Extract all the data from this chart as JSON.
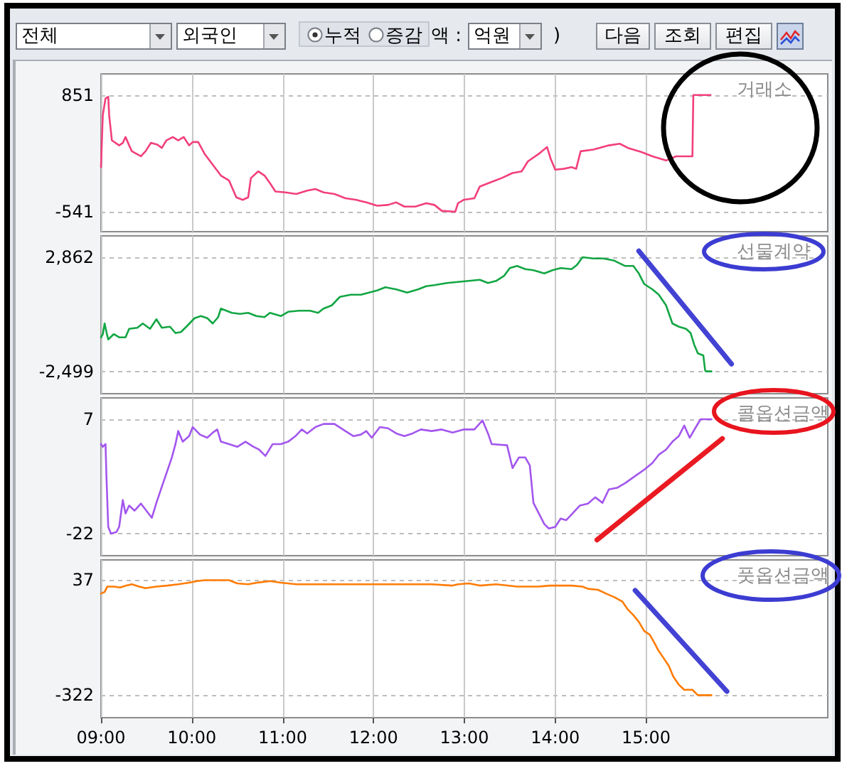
{
  "chart_data": [
    {
      "type": "other",
      "annotations": [
        "전체",
        "외국인",
        "누적",
        "증감",
        "액 :",
        "억원",
        ")",
        "다음",
        "조회",
        "편집"
      ]
    },
    {
      "type": "line",
      "title": "거래소",
      "series": [
        {
          "color": "#f23f7c",
          "x": [
            9.0,
            9.02,
            9.05,
            9.08,
            9.09,
            9.12,
            9.2,
            9.24,
            9.27,
            9.31,
            9.34,
            9.39,
            9.44,
            9.49,
            9.55,
            9.62,
            9.67,
            9.72,
            9.79,
            9.85,
            9.91,
            9.97,
            10.01,
            10.07,
            10.14,
            10.23,
            10.32,
            10.41,
            10.49,
            10.56,
            10.62,
            10.65,
            10.73,
            10.8,
            10.86,
            10.92,
            11.03,
            11.15,
            11.27,
            11.36,
            11.45,
            11.57,
            11.69,
            11.81,
            11.92,
            12.04,
            12.16,
            12.25,
            12.34,
            12.46,
            12.58,
            12.67,
            12.75,
            12.9,
            12.93,
            12.99,
            13.11,
            13.17,
            13.29,
            13.41,
            13.53,
            13.63,
            13.7,
            13.82,
            13.91,
            13.95,
            14.0,
            14.09,
            14.18,
            14.23,
            14.28,
            14.42,
            14.59,
            14.71,
            14.8,
            14.95,
            15.07,
            15.22,
            15.33,
            15.51,
            15.52,
            15.71
          ],
          "values": [
            -10,
            610,
            810,
            830,
            610,
            310,
            250,
            280,
            350,
            250,
            180,
            150,
            120,
            180,
            280,
            260,
            220,
            310,
            350,
            310,
            350,
            250,
            290,
            290,
            150,
            20,
            -110,
            -170,
            -370,
            -400,
            -370,
            -140,
            -60,
            -110,
            -200,
            -300,
            -310,
            -330,
            -290,
            -270,
            -310,
            -330,
            -380,
            -400,
            -430,
            -470,
            -460,
            -430,
            -480,
            -480,
            -440,
            -460,
            -530,
            -541,
            -440,
            -400,
            -380,
            -240,
            -190,
            -140,
            -80,
            -60,
            60,
            150,
            230,
            90,
            -40,
            -30,
            -10,
            -30,
            180,
            200,
            250,
            270,
            220,
            170,
            120,
            70,
            120,
            120,
            851,
            851
          ]
        }
      ],
      "xlim": [
        9,
        17
      ],
      "xticks": [
        9,
        10,
        11,
        12,
        13,
        14,
        15
      ],
      "ylim": [
        -779,
        1103
      ],
      "yticks": [
        -541,
        851
      ],
      "grid": true,
      "tick_labels": "y"
    },
    {
      "type": "line",
      "title": "선물계약",
      "series": [
        {
          "color": "#12a643",
          "x": [
            9.0,
            9.02,
            9.04,
            9.06,
            9.08,
            9.14,
            9.2,
            9.27,
            9.31,
            9.4,
            9.46,
            9.54,
            9.61,
            9.67,
            9.76,
            9.82,
            9.88,
            9.94,
            10.03,
            10.1,
            10.17,
            10.23,
            10.29,
            10.32,
            10.38,
            10.44,
            10.53,
            10.62,
            10.71,
            10.8,
            10.86,
            10.98,
            11.06,
            11.18,
            11.3,
            11.39,
            11.45,
            11.54,
            11.63,
            11.75,
            11.86,
            11.95,
            12.04,
            12.13,
            12.25,
            12.37,
            12.49,
            12.58,
            12.67,
            12.81,
            12.93,
            13.05,
            13.17,
            13.26,
            13.35,
            13.44,
            13.5,
            13.58,
            13.67,
            13.76,
            13.88,
            13.97,
            14.06,
            14.18,
            14.24,
            14.3,
            14.42,
            14.53,
            14.65,
            14.77,
            14.86,
            14.92,
            14.98,
            15.07,
            15.14,
            15.22,
            15.29,
            15.36,
            15.44,
            15.49,
            15.53,
            15.57,
            15.6,
            15.63,
            15.65,
            15.66,
            15.72
          ],
          "values": [
            -900,
            -750,
            -250,
            -650,
            -1000,
            -750,
            -900,
            -900,
            -500,
            -450,
            -250,
            -500,
            -50,
            -450,
            -400,
            -700,
            -650,
            -400,
            0,
            100,
            0,
            -250,
            50,
            450,
            350,
            250,
            200,
            250,
            100,
            50,
            250,
            100,
            300,
            350,
            350,
            250,
            450,
            600,
            1000,
            1100,
            1100,
            1200,
            1300,
            1450,
            1350,
            1200,
            1350,
            1500,
            1550,
            1650,
            1700,
            1750,
            1800,
            1650,
            1750,
            2000,
            2350,
            2450,
            2300,
            2250,
            2100,
            2250,
            2350,
            2300,
            2500,
            2862,
            2800,
            2800,
            2700,
            2450,
            2450,
            2100,
            1600,
            1350,
            1100,
            600,
            -250,
            -400,
            -500,
            -700,
            -1250,
            -1650,
            -1700,
            -1750,
            -2450,
            -2499,
            -2499
          ]
        },
        {
          "color": "#4242d4",
          "x": [
            14.92,
            15.94
          ],
          "values": [
            3150,
            -2150
          ]
        }
      ],
      "xlim": [
        9,
        17
      ],
      "xticks": [
        9,
        10,
        11,
        12,
        13,
        14,
        15
      ],
      "ylim": [
        -3544,
        3861
      ],
      "yticks": [
        {
          "value": -2499,
          "label": "-2,499"
        },
        {
          "value": 2862,
          "label": "2,862"
        }
      ],
      "grid": true,
      "tick_labels": "y"
    },
    {
      "type": "line",
      "title": "콜옵션금액",
      "series": [
        {
          "color": "#a356ee",
          "x": [
            9.0,
            9.02,
            9.05,
            9.06,
            9.08,
            9.11,
            9.17,
            9.2,
            9.24,
            9.27,
            9.31,
            9.37,
            9.44,
            9.5,
            9.56,
            9.61,
            9.67,
            9.73,
            9.78,
            9.82,
            9.85,
            9.9,
            9.97,
            10.01,
            10.09,
            10.17,
            10.23,
            10.28,
            10.32,
            10.41,
            10.5,
            10.59,
            10.68,
            10.74,
            10.81,
            10.89,
            10.98,
            11.06,
            11.14,
            11.21,
            11.27,
            11.36,
            11.45,
            11.57,
            11.69,
            11.78,
            11.86,
            11.92,
            11.98,
            12.07,
            12.16,
            12.25,
            12.34,
            12.43,
            12.52,
            12.64,
            12.75,
            12.87,
            12.99,
            13.11,
            13.2,
            13.26,
            13.3,
            13.47,
            13.53,
            13.6,
            13.67,
            13.72,
            13.76,
            13.82,
            13.88,
            13.93,
            14.0,
            14.06,
            14.12,
            14.19,
            14.27,
            14.36,
            14.44,
            14.52,
            14.59,
            14.68,
            14.77,
            14.88,
            14.98,
            15.07,
            15.14,
            15.22,
            15.29,
            15.36,
            15.42,
            15.48,
            15.54,
            15.6,
            15.72
          ],
          "values": [
            0.7,
            0,
            0.7,
            -7.4,
            -20.3,
            -22,
            -21.6,
            -20.3,
            -13.5,
            -16.9,
            -14.9,
            -16.2,
            -14.4,
            -16.2,
            -18,
            -14.2,
            -10.1,
            -6.1,
            -2.7,
            0.7,
            4,
            1.3,
            2.7,
            5,
            3.1,
            2.3,
            3.6,
            4.4,
            1.3,
            0.7,
            0,
            1.3,
            0,
            -0.7,
            -2.3,
            0.7,
            0.7,
            1.3,
            2.7,
            4.4,
            3.4,
            5,
            5.8,
            5.8,
            4,
            2.7,
            3.1,
            4,
            2.3,
            5,
            4.7,
            3.4,
            2.7,
            3.4,
            4.4,
            4,
            4.4,
            3.6,
            4.4,
            4.4,
            6.7,
            3.4,
            0.7,
            0.4,
            -5.4,
            -2.7,
            -2.7,
            -4.7,
            -14.2,
            -16.9,
            -19.6,
            -20.7,
            -20.3,
            -18.2,
            -18.6,
            -16.9,
            -14.9,
            -14.4,
            -12.8,
            -14.2,
            -10.8,
            -10.4,
            -9.2,
            -7.4,
            -5.8,
            -4.1,
            -2,
            -0.7,
            1.3,
            2.7,
            5.4,
            2.3,
            4.7,
            7,
            7
          ]
        },
        {
          "color": "#ea1a22",
          "x": [
            14.46,
            15.84
          ],
          "values": [
            -23.6,
            2.1
          ]
        }
      ],
      "xlim": [
        9,
        17
      ],
      "xticks": [
        9,
        10,
        11,
        12,
        13,
        14,
        15
      ],
      "ylim": [
        -27.6,
        12.4
      ],
      "yticks": [
        -22,
        7
      ],
      "grid": true,
      "tick_labels": "y"
    },
    {
      "type": "line",
      "title": "풋옵션금액",
      "series": [
        {
          "color": "#ff7c05",
          "x": [
            9.0,
            9.04,
            9.07,
            9.14,
            9.21,
            9.28,
            9.34,
            9.42,
            9.49,
            9.61,
            9.73,
            9.85,
            9.97,
            10.06,
            10.14,
            10.23,
            10.32,
            10.41,
            10.5,
            10.62,
            10.74,
            10.86,
            10.98,
            11.15,
            11.45,
            12.04,
            12.64,
            12.87,
            12.93,
            13.05,
            13.17,
            13.35,
            13.58,
            13.82,
            13.94,
            14.06,
            14.18,
            14.3,
            14.36,
            14.47,
            14.56,
            14.65,
            14.74,
            14.8,
            14.86,
            14.92,
            14.98,
            15.04,
            15.1,
            15.13,
            15.19,
            15.25,
            15.3,
            15.36,
            15.42,
            15.51,
            15.57,
            15.72
          ],
          "values": [
            -5,
            0,
            17,
            17,
            14,
            20,
            24,
            17,
            12,
            17,
            20,
            24,
            29,
            34,
            37,
            37,
            37,
            37,
            27,
            24,
            30,
            34,
            29,
            24,
            24,
            24,
            24,
            20,
            24,
            27,
            20,
            24,
            17,
            17,
            20,
            20,
            20,
            17,
            10,
            7,
            -5,
            -16,
            -30,
            -55,
            -72,
            -93,
            -122,
            -133,
            -163,
            -180,
            -205,
            -230,
            -264,
            -289,
            -305,
            -305,
            -322,
            -322
          ]
        },
        {
          "color": "#4242d4",
          "x": [
            14.88,
            15.89
          ],
          "values": [
            5,
            -310
          ]
        }
      ],
      "xlim": [
        9,
        17
      ],
      "xticks": [
        {
          "value": 9,
          "label": "09:00"
        },
        {
          "value": 10,
          "label": "10:00"
        },
        {
          "value": 11,
          "label": "11:00"
        },
        {
          "value": 12,
          "label": "12:00"
        },
        {
          "value": 13,
          "label": "13:00"
        },
        {
          "value": 14,
          "label": "14:00"
        },
        {
          "value": 15,
          "label": "15:00"
        }
      ],
      "ylim": [
        -392,
        100
      ],
      "yticks": [
        -322,
        37
      ],
      "grid": true
    }
  ]
}
